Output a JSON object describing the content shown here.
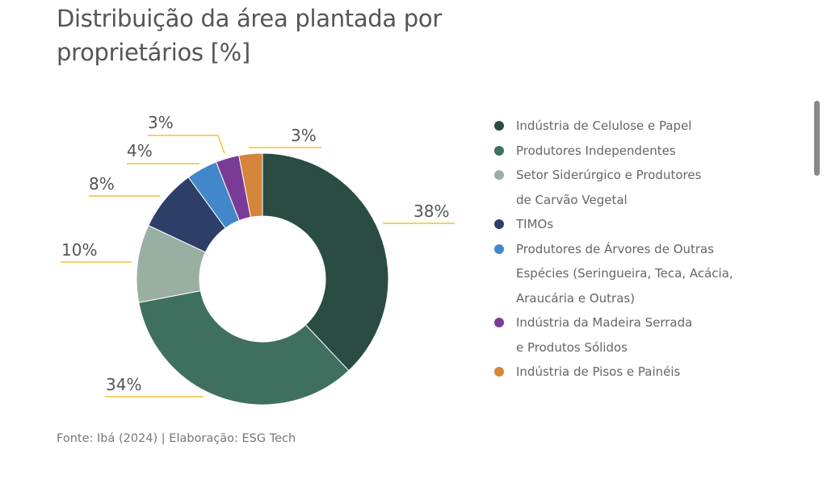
{
  "title_lines": [
    "Distribuição da área plantada por",
    "proprietários [%]"
  ],
  "chart_data": {
    "type": "pie",
    "variant": "donut",
    "title": "Distribuição da área plantada por proprietários [%]",
    "categories": [
      "Indústria de Celulose e Papel",
      "Produtores Independentes",
      "Setor Siderúrgico e Produtores de Carvão Vegetal",
      "TIMOs",
      "Produtores de Árvores de Outras Espécies (Seringueira, Teca,  Acácia, Araucária e Outras)",
      "Indústria da Madeira Serrada e Produtos Sólidos",
      "Indústria de Pisos e Painéis"
    ],
    "values": [
      38,
      34,
      10,
      8,
      4,
      3,
      3
    ],
    "data_labels": [
      "38%",
      "34%",
      "10%",
      "8%",
      "4%",
      "3%",
      "3%"
    ],
    "colors": [
      "#2a4c43",
      "#3f705f",
      "#9aafa1",
      "#2d3f68",
      "#4287c9",
      "#7a3b96",
      "#d4853a"
    ],
    "leader_line_color": "#f2c230",
    "legend_position": "right",
    "start_angle": "top, clockwise"
  },
  "legend": [
    {
      "lines": [
        "Indústria de Celulose e Papel"
      ]
    },
    {
      "lines": [
        "Produtores Independentes"
      ]
    },
    {
      "lines": [
        "Setor Siderúrgico e Produtores",
        "de Carvão Vegetal"
      ]
    },
    {
      "lines": [
        "TIMOs"
      ]
    },
    {
      "lines": [
        "Produtores de Árvores de Outras",
        "Espécies (Seringueira, Teca,  Acácia,",
        "Araucária e Outras)"
      ]
    },
    {
      "lines": [
        "Indústria da Madeira Serrada",
        "e Produtos Sólidos"
      ]
    },
    {
      "lines": [
        "Indústria de Pisos e Painéis"
      ]
    }
  ],
  "footer": "Fonte: Ibá (2024) | Elaboração: ESG Tech"
}
